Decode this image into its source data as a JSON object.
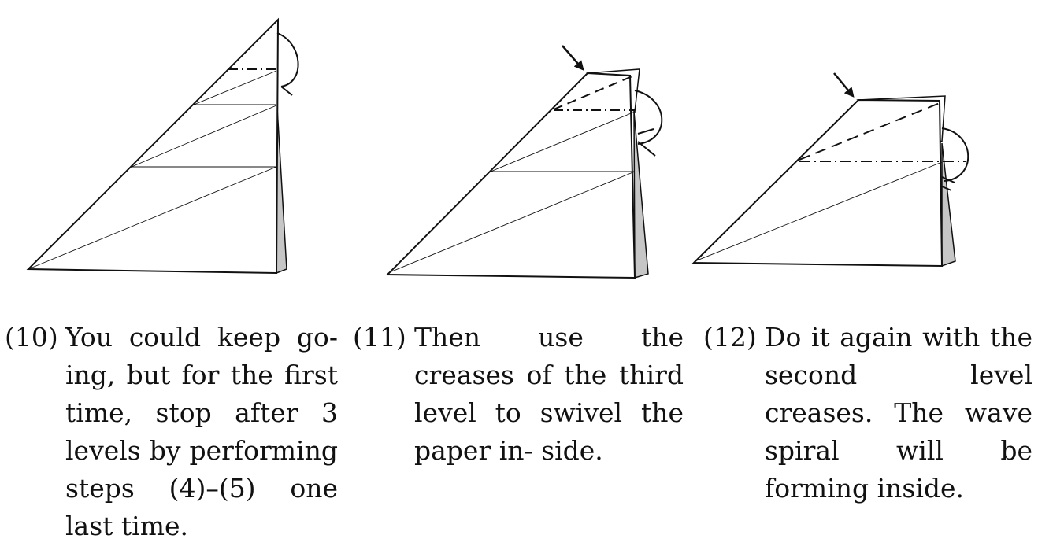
{
  "steps": [
    {
      "number": "(10)",
      "text": "You could keep go- ing, but for the first time, stop after 3 levels by performing steps (4)–(5) one last time."
    },
    {
      "number": "(11)",
      "text": "Then use the creases of the third level to swivel the paper in- side."
    },
    {
      "number": "(12)",
      "text": "Do it again with the second level creases. The wave spiral will be forming inside."
    }
  ]
}
